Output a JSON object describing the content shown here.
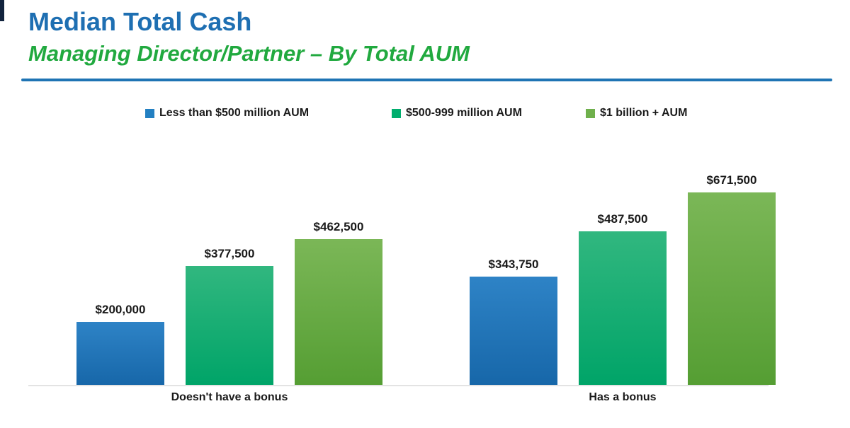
{
  "header": {
    "title": "Median Total Cash",
    "subtitle": "Managing Director/Partner – By Total AUM",
    "title_color": "#1E6FB2",
    "subtitle_color": "#21A93F",
    "underline_color": "#1F74B4"
  },
  "chart_data": {
    "type": "bar",
    "title": "Median Total Cash",
    "subtitle": "Managing Director/Partner – By Total AUM",
    "categories": [
      "Doesn't have a bonus",
      "Has a bonus"
    ],
    "series": [
      {
        "name": "Less than $500 million AUM",
        "values": [
          200000,
          343750
        ],
        "legend_color": "#2380C2",
        "color_top": "#2E83C6",
        "color_bottom": "#1767A9"
      },
      {
        "name": "$500-999 million AUM",
        "values": [
          377500,
          487500
        ],
        "legend_color": "#00AE6E",
        "color_top": "#31B77F",
        "color_bottom": "#00A468"
      },
      {
        "name": "$1 billion + AUM",
        "values": [
          462500,
          671500
        ],
        "legend_color": "#6FB04C",
        "color_top": "#7BB757",
        "color_bottom": "#559E33"
      }
    ],
    "value_labels": [
      [
        "$200,000",
        "$377,500",
        "$462,500"
      ],
      [
        "$343,750",
        "$487,500",
        "$671,500"
      ]
    ],
    "xlabel": "",
    "ylabel": "",
    "ylim": [
      0,
      700000
    ],
    "grid": false,
    "legend_position": "top",
    "data_label_format": "$#,##0"
  }
}
